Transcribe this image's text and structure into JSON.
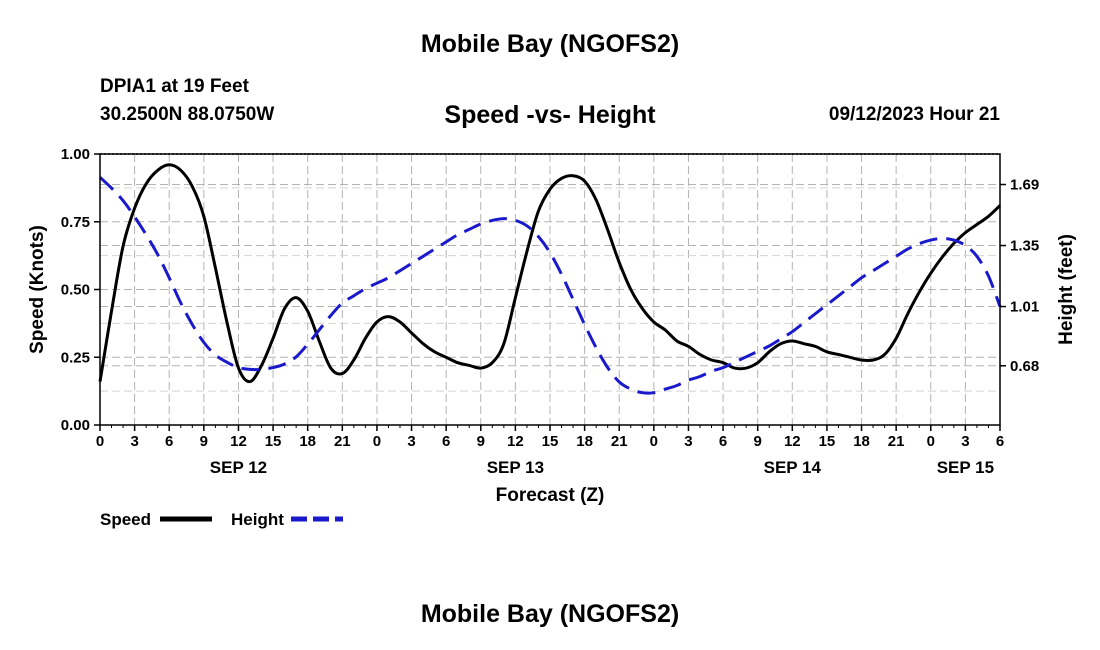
{
  "header": {
    "title": "Mobile Bay (NGOFS2)",
    "station": "DPIA1 at 19 Feet",
    "coords": "30.2500N  88.0750W",
    "subtitle": "Speed -vs- Height",
    "forecast_time": "09/12/2023 Hour 21"
  },
  "footer": {
    "title": "Mobile Bay (NGOFS2)"
  },
  "colors": {
    "speed": "#000000",
    "height": "#1a1acc",
    "grid": "#b4b4b4"
  },
  "chart_data": {
    "type": "line",
    "xlabel": "Forecast (Z)",
    "ylabel_left": "Speed (Knots)",
    "ylabel_right": "Height (feet)",
    "x_unit": "hours since 2023-09-12 00Z",
    "xlim": [
      0,
      78
    ],
    "ylim_left": [
      0,
      1.0
    ],
    "ylim_right": [
      0.35,
      1.86
    ],
    "grid": true,
    "x_ticks": [
      0,
      3,
      6,
      9,
      12,
      15,
      18,
      21,
      24,
      27,
      30,
      33,
      36,
      39,
      42,
      45,
      48,
      51,
      54,
      57,
      60,
      63,
      66,
      69,
      72,
      75,
      78
    ],
    "x_tick_labels": [
      "0",
      "3",
      "6",
      "9",
      "12",
      "15",
      "18",
      "21",
      "0",
      "3",
      "6",
      "9",
      "12",
      "15",
      "18",
      "21",
      "0",
      "3",
      "6",
      "9",
      "12",
      "15",
      "18",
      "21",
      "0",
      "3",
      "6"
    ],
    "date_labels": [
      {
        "x": 12,
        "text": "SEP 12"
      },
      {
        "x": 36,
        "text": "SEP 13"
      },
      {
        "x": 60,
        "text": "SEP 14"
      },
      {
        "x": 75,
        "text": "SEP 15"
      }
    ],
    "y_left_ticks": [
      0.0,
      0.25,
      0.5,
      0.75,
      1.0
    ],
    "y_left_tick_labels": [
      "0.00",
      "0.25",
      "0.50",
      "0.75",
      "1.00"
    ],
    "y_right_ticks": [
      0.68,
      1.01,
      1.35,
      1.69
    ],
    "y_right_tick_labels": [
      "0.68",
      "1.01",
      "1.35",
      "1.69"
    ],
    "legend": {
      "placement": "bottom-left",
      "entries": [
        "Speed",
        "Height"
      ]
    },
    "series": [
      {
        "name": "Speed",
        "axis": "left",
        "style": "solid",
        "points": [
          [
            0,
            0.16
          ],
          [
            1,
            0.42
          ],
          [
            2,
            0.66
          ],
          [
            3,
            0.8
          ],
          [
            4,
            0.89
          ],
          [
            5,
            0.94
          ],
          [
            6,
            0.96
          ],
          [
            7,
            0.94
          ],
          [
            8,
            0.88
          ],
          [
            9,
            0.77
          ],
          [
            10,
            0.58
          ],
          [
            11,
            0.38
          ],
          [
            12,
            0.21
          ],
          [
            13,
            0.16
          ],
          [
            14,
            0.22
          ],
          [
            15,
            0.32
          ],
          [
            16,
            0.43
          ],
          [
            17,
            0.47
          ],
          [
            18,
            0.42
          ],
          [
            19,
            0.31
          ],
          [
            20,
            0.21
          ],
          [
            21,
            0.19
          ],
          [
            22,
            0.24
          ],
          [
            23,
            0.32
          ],
          [
            24,
            0.38
          ],
          [
            25,
            0.4
          ],
          [
            26,
            0.38
          ],
          [
            27,
            0.34
          ],
          [
            28,
            0.3
          ],
          [
            29,
            0.27
          ],
          [
            30,
            0.25
          ],
          [
            31,
            0.23
          ],
          [
            32,
            0.22
          ],
          [
            33,
            0.21
          ],
          [
            34,
            0.23
          ],
          [
            35,
            0.3
          ],
          [
            36,
            0.47
          ],
          [
            37,
            0.64
          ],
          [
            38,
            0.79
          ],
          [
            39,
            0.87
          ],
          [
            40,
            0.91
          ],
          [
            41,
            0.92
          ],
          [
            42,
            0.9
          ],
          [
            43,
            0.83
          ],
          [
            44,
            0.72
          ],
          [
            45,
            0.6
          ],
          [
            46,
            0.5
          ],
          [
            47,
            0.43
          ],
          [
            48,
            0.38
          ],
          [
            49,
            0.35
          ],
          [
            50,
            0.31
          ],
          [
            51,
            0.29
          ],
          [
            52,
            0.26
          ],
          [
            53,
            0.24
          ],
          [
            54,
            0.23
          ],
          [
            55,
            0.21
          ],
          [
            56,
            0.21
          ],
          [
            57,
            0.23
          ],
          [
            58,
            0.27
          ],
          [
            59,
            0.3
          ],
          [
            60,
            0.31
          ],
          [
            61,
            0.3
          ],
          [
            62,
            0.29
          ],
          [
            63,
            0.27
          ],
          [
            64,
            0.26
          ],
          [
            65,
            0.25
          ],
          [
            66,
            0.24
          ],
          [
            67,
            0.24
          ],
          [
            68,
            0.26
          ],
          [
            69,
            0.32
          ],
          [
            70,
            0.41
          ],
          [
            71,
            0.49
          ],
          [
            72,
            0.56
          ],
          [
            73,
            0.62
          ],
          [
            74,
            0.67
          ],
          [
            75,
            0.71
          ],
          [
            76,
            0.74
          ],
          [
            77,
            0.77
          ],
          [
            78,
            0.81
          ]
        ]
      },
      {
        "name": "Height",
        "axis": "right",
        "style": "dashed",
        "points": [
          [
            0,
            1.73
          ],
          [
            1,
            1.67
          ],
          [
            2,
            1.6
          ],
          [
            3,
            1.51
          ],
          [
            4,
            1.41
          ],
          [
            5,
            1.3
          ],
          [
            6,
            1.17
          ],
          [
            7,
            1.03
          ],
          [
            8,
            0.91
          ],
          [
            9,
            0.81
          ],
          [
            10,
            0.74
          ],
          [
            11,
            0.7
          ],
          [
            12,
            0.67
          ],
          [
            13,
            0.66
          ],
          [
            14,
            0.66
          ],
          [
            15,
            0.67
          ],
          [
            16,
            0.69
          ],
          [
            17,
            0.73
          ],
          [
            18,
            0.8
          ],
          [
            19,
            0.88
          ],
          [
            20,
            0.96
          ],
          [
            21,
            1.03
          ],
          [
            22,
            1.07
          ],
          [
            23,
            1.11
          ],
          [
            24,
            1.14
          ],
          [
            25,
            1.17
          ],
          [
            26,
            1.21
          ],
          [
            27,
            1.25
          ],
          [
            28,
            1.29
          ],
          [
            29,
            1.33
          ],
          [
            30,
            1.37
          ],
          [
            31,
            1.41
          ],
          [
            32,
            1.44
          ],
          [
            33,
            1.47
          ],
          [
            34,
            1.49
          ],
          [
            35,
            1.5
          ],
          [
            36,
            1.49
          ],
          [
            37,
            1.46
          ],
          [
            38,
            1.4
          ],
          [
            39,
            1.31
          ],
          [
            40,
            1.19
          ],
          [
            41,
            1.05
          ],
          [
            42,
            0.91
          ],
          [
            43,
            0.78
          ],
          [
            44,
            0.67
          ],
          [
            45,
            0.59
          ],
          [
            46,
            0.55
          ],
          [
            47,
            0.53
          ],
          [
            48,
            0.53
          ],
          [
            49,
            0.55
          ],
          [
            50,
            0.57
          ],
          [
            51,
            0.6
          ],
          [
            52,
            0.62
          ],
          [
            53,
            0.65
          ],
          [
            54,
            0.67
          ],
          [
            55,
            0.7
          ],
          [
            56,
            0.73
          ],
          [
            57,
            0.76
          ],
          [
            58,
            0.79
          ],
          [
            59,
            0.83
          ],
          [
            60,
            0.87
          ],
          [
            61,
            0.92
          ],
          [
            62,
            0.97
          ],
          [
            63,
            1.02
          ],
          [
            64,
            1.07
          ],
          [
            65,
            1.12
          ],
          [
            66,
            1.17
          ],
          [
            67,
            1.21
          ],
          [
            68,
            1.25
          ],
          [
            69,
            1.29
          ],
          [
            70,
            1.33
          ],
          [
            71,
            1.36
          ],
          [
            72,
            1.38
          ],
          [
            73,
            1.39
          ],
          [
            74,
            1.38
          ],
          [
            75,
            1.35
          ],
          [
            76,
            1.29
          ],
          [
            77,
            1.18
          ],
          [
            78,
            1.01
          ]
        ]
      }
    ]
  }
}
